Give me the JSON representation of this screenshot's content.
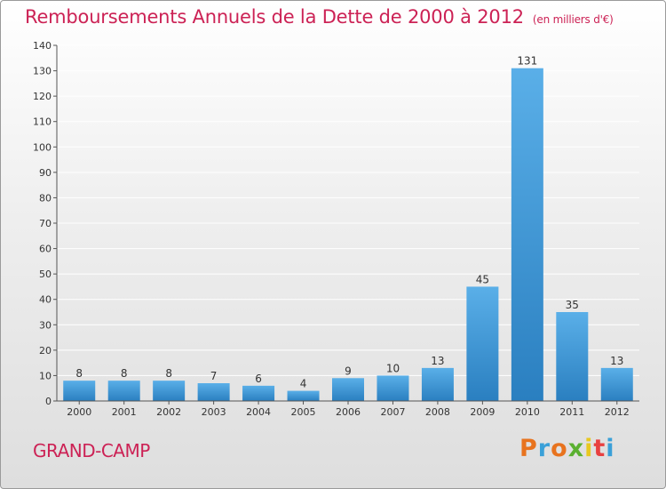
{
  "header": {
    "title": "Remboursements Annuels de la Dette de 2000 à 2012",
    "subtitle": "(en milliers d'€)"
  },
  "footer": {
    "town": "GRAND-CAMP",
    "logo_text": "Proxiti"
  },
  "colors": {
    "title": "#cc2255",
    "bar_top": "#5aafe8",
    "bar_bottom": "#2a7fc0",
    "logo": [
      "#e8731e",
      "#3aa0d8",
      "#e8731e",
      "#5ab030",
      "#e8c820",
      "#e84040",
      "#3aa0d8"
    ]
  },
  "chart_data": {
    "type": "bar",
    "categories": [
      "2000",
      "2001",
      "2002",
      "2003",
      "2004",
      "2005",
      "2006",
      "2007",
      "2008",
      "2009",
      "2010",
      "2011",
      "2012"
    ],
    "values": [
      8,
      8,
      8,
      7,
      6,
      4,
      9,
      10,
      13,
      45,
      131,
      35,
      13
    ],
    "title": "Remboursements Annuels de la Dette de 2000 à 2012",
    "xlabel": "",
    "ylabel": "",
    "ylim": [
      0,
      140
    ],
    "yticks": [
      0,
      10,
      20,
      30,
      40,
      50,
      60,
      70,
      80,
      90,
      100,
      110,
      120,
      130,
      140
    ],
    "grid": true,
    "data_labels": true
  }
}
